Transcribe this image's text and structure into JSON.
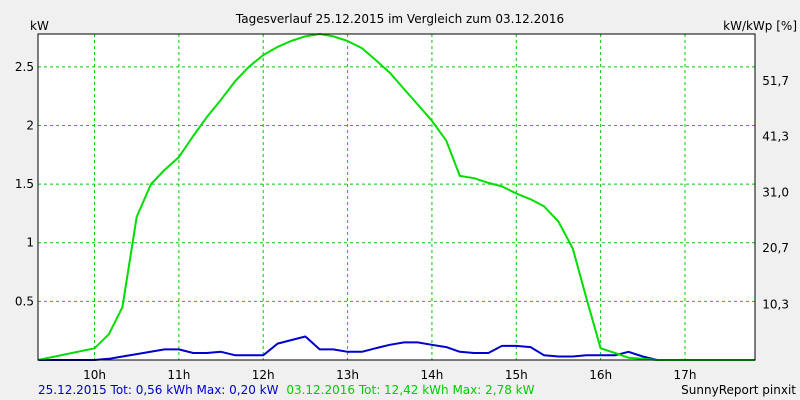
{
  "chart_data": {
    "type": "line",
    "title": "Tagesverlauf 25.12.2015 im Vergleich zum 03.12.2016",
    "ylabel_left": "kW",
    "ylabel_right": "kW/kWp [%]",
    "x_range_hours": [
      9.33,
      17.83
    ],
    "ylim": [
      0,
      2.78
    ],
    "x_ticks": [
      {
        "v": 10,
        "label": "10h"
      },
      {
        "v": 11,
        "label": "11h"
      },
      {
        "v": 12,
        "label": "12h"
      },
      {
        "v": 13,
        "label": "13h"
      },
      {
        "v": 14,
        "label": "14h"
      },
      {
        "v": 15,
        "label": "15h"
      },
      {
        "v": 16,
        "label": "16h"
      },
      {
        "v": 17,
        "label": "17h"
      }
    ],
    "y_ticks_left": [
      {
        "v": 0.5,
        "label": "0.5"
      },
      {
        "v": 1,
        "label": "1"
      },
      {
        "v": 1.5,
        "label": "1.5"
      },
      {
        "v": 2,
        "label": "2"
      },
      {
        "v": 2.5,
        "label": "2.5"
      }
    ],
    "y_ticks_right": [
      {
        "v": 0.475,
        "label": "10,3"
      },
      {
        "v": 0.955,
        "label": "20,7"
      },
      {
        "v": 1.43,
        "label": "31,0"
      },
      {
        "v": 1.905,
        "label": "41,3"
      },
      {
        "v": 2.38,
        "label": "51,7"
      }
    ],
    "grid": true,
    "colors": {
      "blue": "#0000cc",
      "green": "#00dd00",
      "grid": "#00cc00",
      "plot_bg": "#ffffff",
      "page_bg": "#f0f0f0"
    },
    "series": [
      {
        "key": "blue",
        "color": "#0000cc",
        "x": [
          9.33,
          10.0,
          10.17,
          10.5,
          10.83,
          11.0,
          11.17,
          11.33,
          11.5,
          11.67,
          11.83,
          12.0,
          12.17,
          12.33,
          12.5,
          12.67,
          12.83,
          13.0,
          13.17,
          13.33,
          13.5,
          13.67,
          13.83,
          14.0,
          14.17,
          14.33,
          14.5,
          14.67,
          14.83,
          15.0,
          15.17,
          15.33,
          15.5,
          15.67,
          15.83,
          16.0,
          16.17,
          16.33,
          16.5,
          16.67,
          16.83,
          17.0,
          17.17,
          17.5,
          17.83
        ],
        "y": [
          0,
          0,
          0.01,
          0.05,
          0.09,
          0.09,
          0.06,
          0.06,
          0.07,
          0.04,
          0.04,
          0.04,
          0.14,
          0.17,
          0.2,
          0.09,
          0.09,
          0.07,
          0.07,
          0.1,
          0.13,
          0.15,
          0.15,
          0.13,
          0.11,
          0.07,
          0.06,
          0.06,
          0.12,
          0.12,
          0.11,
          0.04,
          0.03,
          0.03,
          0.04,
          0.04,
          0.04,
          0.07,
          0.03,
          0,
          0,
          0,
          0,
          0,
          0
        ]
      },
      {
        "key": "green",
        "color": "#00dd00",
        "x": [
          9.33,
          10.0,
          10.17,
          10.33,
          10.5,
          10.67,
          10.83,
          11.0,
          11.17,
          11.33,
          11.5,
          11.67,
          11.83,
          12.0,
          12.17,
          12.33,
          12.5,
          12.67,
          12.83,
          13.0,
          13.17,
          13.33,
          13.5,
          13.67,
          13.83,
          14.0,
          14.17,
          14.33,
          14.5,
          14.67,
          14.83,
          15.0,
          15.17,
          15.33,
          15.5,
          15.67,
          15.83,
          16.0,
          16.17,
          16.33,
          16.5,
          16.67,
          16.83,
          17.0,
          17.17,
          17.5,
          17.83
        ],
        "y": [
          0,
          0.1,
          0.22,
          0.45,
          1.22,
          1.5,
          1.62,
          1.73,
          1.91,
          2.07,
          2.22,
          2.38,
          2.5,
          2.6,
          2.67,
          2.72,
          2.76,
          2.78,
          2.76,
          2.72,
          2.66,
          2.56,
          2.45,
          2.31,
          2.18,
          2.04,
          1.87,
          1.57,
          1.55,
          1.51,
          1.48,
          1.42,
          1.37,
          1.31,
          1.18,
          0.95,
          0.53,
          0.1,
          0.06,
          0.02,
          0.01,
          0,
          0,
          0,
          0,
          0,
          0
        ]
      }
    ],
    "footer": {
      "left_blue": "25.12.2015 Tot: 0,56 kWh Max: 0,20 kW",
      "left_green": "03.12.2016 Tot: 12,42 kWh Max: 2,78 kW",
      "right": "SunnyReport pinxit"
    }
  }
}
